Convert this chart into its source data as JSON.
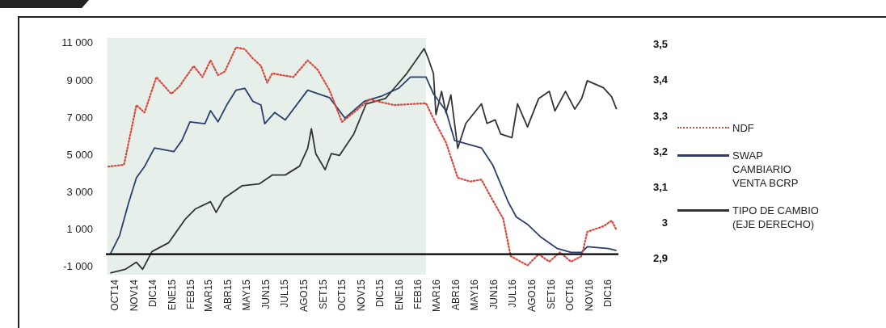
{
  "chart_data": {
    "type": "line",
    "xlim": [
      "2014-10-01",
      "2016-12-31"
    ],
    "xticks": [
      {
        "value": "2014-10-16",
        "label": "OCT14"
      },
      {
        "value": "2014-11-16",
        "label": "NOV14"
      },
      {
        "value": "2014-12-16",
        "label": "DIC14"
      },
      {
        "value": "2015-01-16",
        "label": "ENE15"
      },
      {
        "value": "2015-02-15",
        "label": "FEB15"
      },
      {
        "value": "2015-03-16",
        "label": "MAR15"
      },
      {
        "value": "2015-04-16",
        "label": "ABR15"
      },
      {
        "value": "2015-05-16",
        "label": "MAY15"
      },
      {
        "value": "2015-06-16",
        "label": "JUN15"
      },
      {
        "value": "2015-07-16",
        "label": "JUL15"
      },
      {
        "value": "2015-08-16",
        "label": "AGO15"
      },
      {
        "value": "2015-09-16",
        "label": "SET15"
      },
      {
        "value": "2015-10-16",
        "label": "OCT15"
      },
      {
        "value": "2015-11-16",
        "label": "NOV15"
      },
      {
        "value": "2015-12-16",
        "label": "DIC15"
      },
      {
        "value": "2016-01-16",
        "label": "ENE16"
      },
      {
        "value": "2016-02-15",
        "label": "FEB16"
      },
      {
        "value": "2016-03-16",
        "label": "MAR16"
      },
      {
        "value": "2016-04-16",
        "label": "ABR16"
      },
      {
        "value": "2016-05-16",
        "label": "MAY16"
      },
      {
        "value": "2016-06-16",
        "label": "JUN16"
      },
      {
        "value": "2016-07-16",
        "label": "JUL16"
      },
      {
        "value": "2016-08-16",
        "label": "AGO16"
      },
      {
        "value": "2016-09-16",
        "label": "SET16"
      },
      {
        "value": "2016-10-16",
        "label": "OCT16"
      },
      {
        "value": "2016-11-16",
        "label": "NOV16"
      },
      {
        "value": "2016-12-16",
        "label": "DIC16"
      }
    ],
    "ylim": [
      -1400,
      11300
    ],
    "yticks": [
      {
        "value": -1000,
        "label": "-1 000"
      },
      {
        "value": 1000,
        "label": "1 000"
      },
      {
        "value": 3000,
        "label": "3 000"
      },
      {
        "value": 5000,
        "label": "5 000"
      },
      {
        "value": 7000,
        "label": "7 000"
      },
      {
        "value": 9000,
        "label": "9 000"
      },
      {
        "value": 11000,
        "label": "11 000"
      }
    ],
    "y2lim": [
      2.855,
      3.52
    ],
    "y2ticks": [
      {
        "value": 2.9,
        "label": "2,9"
      },
      3,
      {
        "value": 3.1,
        "label": "3,1"
      },
      {
        "value": 3.2,
        "label": "3,2"
      },
      {
        "value": 3.3,
        "label": "3,3"
      },
      {
        "value": 3.4,
        "label": "3,4"
      },
      {
        "value": 3.5,
        "label": "3,5"
      }
    ],
    "grid": false,
    "legend": "right",
    "marker": "none",
    "bands": [
      {
        "axis": "x",
        "from": "2014-10-03",
        "to": "2016-02-27",
        "color": "#e6efea"
      }
    ],
    "ref_lines": [
      {
        "axis": "y",
        "value": -300,
        "color": "#000000"
      }
    ],
    "series": [
      {
        "name": "NDF",
        "color": "#d9463a",
        "line_style": "dotted",
        "x": [
          "2014-10-05",
          "2014-10-30",
          "2014-11-19",
          "2014-12-02",
          "2014-12-21",
          "2015-01-14",
          "2015-01-27",
          "2015-02-19",
          "2015-03-05",
          "2015-03-18",
          "2015-03-30",
          "2015-04-10",
          "2015-04-28",
          "2015-05-12",
          "2015-05-25",
          "2015-06-07",
          "2015-06-17",
          "2015-06-25",
          "2015-07-29",
          "2015-08-21",
          "2015-09-06",
          "2015-09-25",
          "2015-10-15",
          "2015-11-03",
          "2015-11-28",
          "2016-01-07",
          "2016-02-27",
          "2016-03-14",
          "2016-03-30",
          "2016-04-18",
          "2016-05-08",
          "2016-05-26",
          "2016-06-13",
          "2016-06-30",
          "2016-07-12",
          "2016-08-08",
          "2016-08-26",
          "2016-09-12",
          "2016-09-29",
          "2016-10-17",
          "2016-11-03",
          "2016-11-12",
          "2016-12-08",
          "2016-12-21",
          "2016-12-29"
        ],
        "values": [
          4400,
          4500,
          7700,
          7300,
          9200,
          8300,
          8700,
          9800,
          9200,
          10100,
          9300,
          9500,
          10800,
          10700,
          10200,
          9800,
          8900,
          9400,
          9200,
          10100,
          9600,
          8500,
          6800,
          7300,
          8000,
          7700,
          7800,
          6700,
          5700,
          3800,
          3600,
          3700,
          2600,
          1600,
          -400,
          -900,
          -300,
          -700,
          -200,
          -700,
          -400,
          900,
          1200,
          1500,
          1000
        ]
      },
      {
        "name": "SWAP CAMBIARIO VENTA BCRP",
        "color": "#2b3f6e",
        "line_style": "solid",
        "x": [
          "2014-10-08",
          "2014-10-23",
          "2014-11-06",
          "2014-11-19",
          "2014-12-02",
          "2014-12-18",
          "2015-01-18",
          "2015-01-31",
          "2015-02-13",
          "2015-03-09",
          "2015-03-18",
          "2015-03-30",
          "2015-04-13",
          "2015-04-28",
          "2015-05-12",
          "2015-05-25",
          "2015-06-07",
          "2015-06-13",
          "2015-06-29",
          "2015-07-16",
          "2015-08-21",
          "2015-09-25",
          "2015-10-20",
          "2015-11-20",
          "2015-12-19",
          "2016-01-14",
          "2016-02-02",
          "2016-02-27",
          "2016-03-10",
          "2016-03-30",
          "2016-04-13",
          "2016-05-26",
          "2016-06-13",
          "2016-07-08",
          "2016-07-21",
          "2016-08-08",
          "2016-08-30",
          "2016-09-25",
          "2016-10-17",
          "2016-11-03",
          "2016-11-12",
          "2016-12-16",
          "2016-12-29"
        ],
        "values": [
          -300,
          700,
          2400,
          3800,
          4400,
          5400,
          5200,
          5800,
          6800,
          6700,
          7400,
          6800,
          7700,
          8500,
          8600,
          7900,
          7700,
          6700,
          7300,
          6900,
          8500,
          8100,
          7000,
          7900,
          8200,
          8600,
          9200,
          9200,
          8300,
          7400,
          5800,
          5400,
          4500,
          2500,
          1700,
          1300,
          600,
          0,
          -200,
          -200,
          100,
          0,
          -100
        ]
      },
      {
        "name": "TIPO DE CAMBIO (EJE DERECHO)",
        "color": "#333333",
        "line_style": "solid",
        "axis": "y2",
        "x": [
          "2014-10-08",
          "2014-11-01",
          "2014-11-19",
          "2014-11-29",
          "2014-12-14",
          "2015-01-10",
          "2015-02-05",
          "2015-02-22",
          "2015-03-18",
          "2015-03-27",
          "2015-04-09",
          "2015-05-08",
          "2015-06-04",
          "2015-06-25",
          "2015-07-16",
          "2015-08-08",
          "2015-08-21",
          "2015-08-27",
          "2015-09-03",
          "2015-09-18",
          "2015-09-28",
          "2015-10-11",
          "2015-11-03",
          "2015-11-23",
          "2015-12-24",
          "2016-01-10",
          "2016-01-27",
          "2016-02-14",
          "2016-02-24",
          "2016-03-01",
          "2016-03-10",
          "2016-03-14",
          "2016-03-23",
          "2016-03-30",
          "2016-04-07",
          "2016-04-18",
          "2016-05-01",
          "2016-05-26",
          "2016-06-04",
          "2016-06-17",
          "2016-06-26",
          "2016-07-14",
          "2016-07-23",
          "2016-08-08",
          "2016-08-26",
          "2016-09-12",
          "2016-09-21",
          "2016-10-08",
          "2016-10-23",
          "2016-11-03",
          "2016-11-12",
          "2016-12-08",
          "2016-12-21",
          "2016-12-29"
        ],
        "values": [
          2.86,
          2.87,
          2.89,
          2.87,
          2.92,
          2.945,
          3.01,
          3.04,
          3.06,
          3.03,
          3.07,
          3.105,
          3.11,
          3.135,
          3.135,
          3.16,
          3.21,
          3.265,
          3.195,
          3.15,
          3.195,
          3.19,
          3.25,
          3.335,
          3.35,
          3.385,
          3.42,
          3.465,
          3.49,
          3.465,
          3.42,
          3.305,
          3.37,
          3.31,
          3.36,
          3.21,
          3.28,
          3.335,
          3.28,
          3.29,
          3.25,
          3.24,
          3.335,
          3.27,
          3.35,
          3.37,
          3.315,
          3.37,
          3.32,
          3.35,
          3.4,
          3.38,
          3.355,
          3.32
        ]
      }
    ]
  }
}
